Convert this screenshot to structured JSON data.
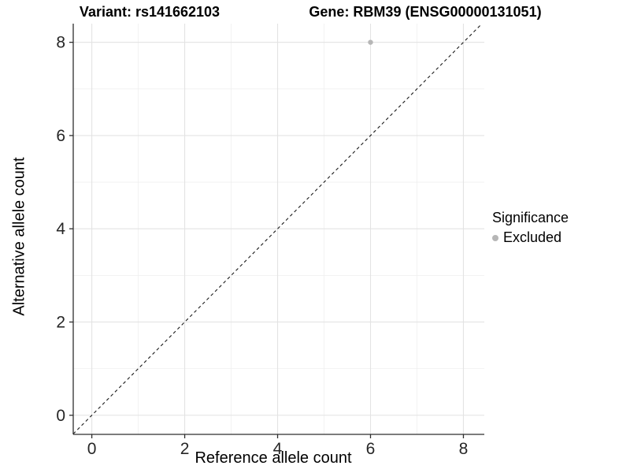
{
  "chart_data": {
    "type": "scatter",
    "title_left": "Variant: rs141662103",
    "title_right": "Gene: RBM39 (ENSG00000131051)",
    "xlabel": "Reference allele count",
    "ylabel": "Alternative allele count",
    "xlim": [
      -0.4,
      8.45
    ],
    "ylim": [
      -0.41,
      8.4
    ],
    "x_major_ticks": [
      0,
      2,
      4,
      6,
      8
    ],
    "y_major_ticks": [
      0,
      2,
      4,
      6,
      8
    ],
    "x_minor_ticks": [
      1,
      3,
      5,
      7
    ],
    "y_minor_ticks": [
      1,
      3,
      5,
      7
    ],
    "grid": "major+minor",
    "legend_position": "right",
    "legend_title": "Significance",
    "series": [
      {
        "name": "Excluded",
        "color": "#b6b6b6",
        "points": [
          {
            "x": 6,
            "y": 8
          }
        ]
      }
    ],
    "reference_line": {
      "type": "identity",
      "style": "dashed",
      "color": "#1a1a1a"
    }
  },
  "style": {
    "background": "#ffffff",
    "grid_major_color": "#e3e3e3",
    "grid_minor_color": "#efefef",
    "axis_color": "#2e2e2e",
    "tick_label_color": "#262626",
    "point_radius": 3.2
  }
}
